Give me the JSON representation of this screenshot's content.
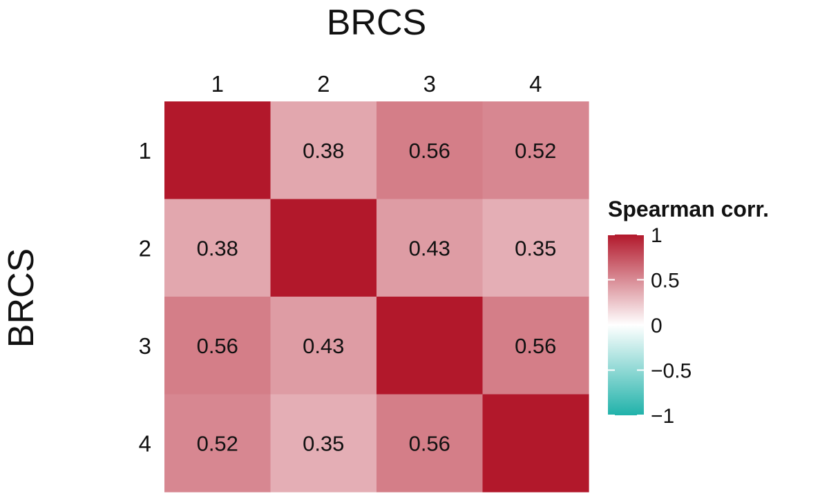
{
  "chart_data": {
    "type": "heatmap",
    "x_title": "BRCS",
    "y_title": "BRCS",
    "x_categories": [
      "1",
      "2",
      "3",
      "4"
    ],
    "y_categories": [
      "1",
      "2",
      "3",
      "4"
    ],
    "values": [
      [
        1,
        0.38,
        0.56,
        0.52
      ],
      [
        0.38,
        1,
        0.43,
        0.35
      ],
      [
        0.56,
        0.43,
        1,
        0.56
      ],
      [
        0.52,
        0.35,
        0.56,
        1
      ]
    ],
    "cell_labels": [
      [
        "",
        "0.38",
        "0.56",
        "0.52"
      ],
      [
        "0.38",
        "",
        "0.43",
        "0.35"
      ],
      [
        "0.56",
        "0.43",
        "",
        "0.56"
      ],
      [
        "0.52",
        "0.35",
        "0.56",
        ""
      ]
    ],
    "x_axis_position": "top",
    "legend": {
      "title": "Spearman corr.",
      "placement": "right",
      "range": [
        -1,
        1
      ],
      "ticks": [
        1,
        0.5,
        0,
        -0.5,
        -1
      ],
      "tick_labels": [
        "1",
        "0.5",
        "0",
        "−0.5",
        "−1"
      ]
    },
    "color_scale": {
      "low": "#20b2aa",
      "mid": "#ffffff",
      "high": "#b2182b"
    }
  }
}
